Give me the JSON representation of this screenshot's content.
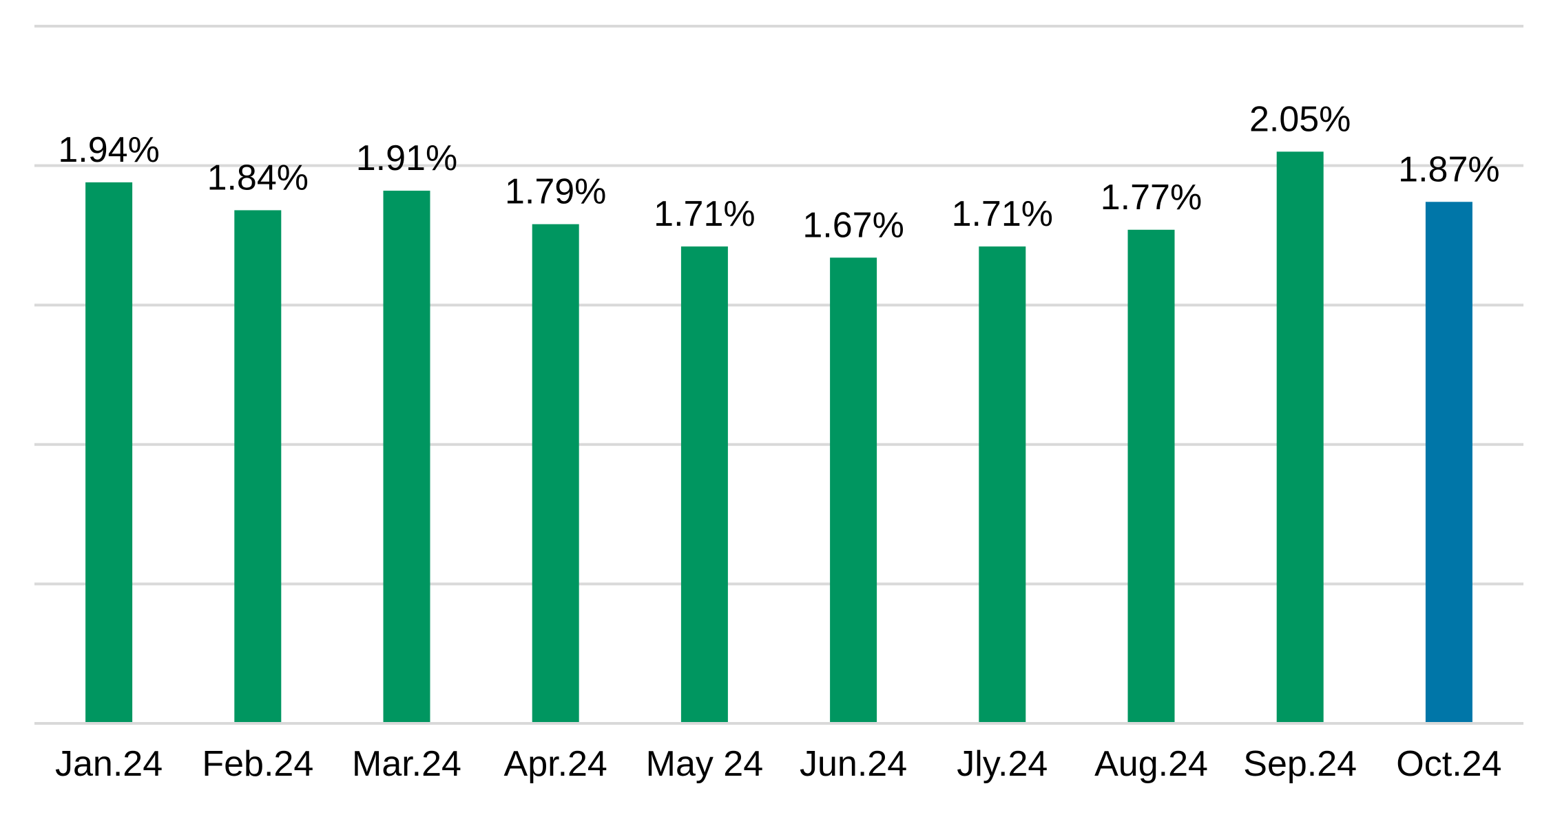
{
  "chart_data": {
    "type": "bar",
    "categories": [
      "Jan.24",
      "Feb.24",
      "Mar.24",
      "Apr.24",
      "May 24",
      "Jun.24",
      "Jly.24",
      "Aug.24",
      "Sep.24",
      "Oct.24"
    ],
    "values": [
      1.94,
      1.84,
      1.91,
      1.79,
      1.71,
      1.67,
      1.71,
      1.77,
      2.05,
      1.87
    ],
    "data_labels": [
      "1.94%",
      "1.84%",
      "1.91%",
      "1.79%",
      "1.71%",
      "1.67%",
      "1.71%",
      "1.77%",
      "2.05%",
      "1.87%"
    ],
    "ylim": [
      0,
      2.5
    ],
    "gridlines": [
      0,
      0.5,
      1.0,
      1.5,
      2.0,
      2.5
    ],
    "grid": true,
    "legend": "none",
    "colors": {
      "default_bar": "#009660",
      "highlight_bar": "#0076A8",
      "gridline": "#D9D9D9"
    },
    "highlight_index": 9
  }
}
